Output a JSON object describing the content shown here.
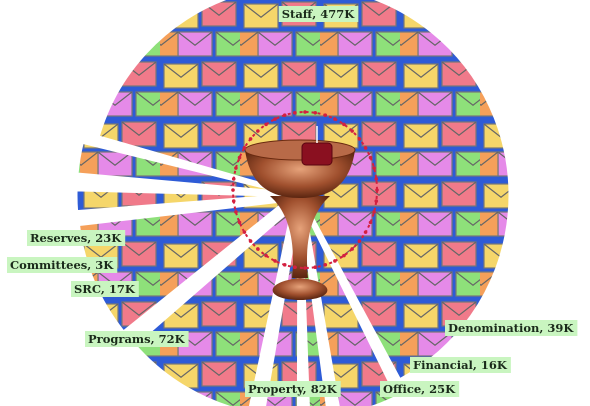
{
  "chart_data": {
    "type": "pie",
    "title": "",
    "slices": [
      {
        "category": "Staff",
        "value": 477,
        "label": "Staff, 477K"
      },
      {
        "category": "Denomination",
        "value": 39,
        "label": "Denomination, 39K"
      },
      {
        "category": "Financial",
        "value": 16,
        "label": "Financial, 16K"
      },
      {
        "category": "Office",
        "value": 25,
        "label": "Office, 25K"
      },
      {
        "category": "Property",
        "value": 82,
        "label": "Property, 82K"
      },
      {
        "category": "Programs",
        "value": 72,
        "label": "Programs, 72K"
      },
      {
        "category": "SRC",
        "value": 17,
        "label": "SRC, 17K"
      },
      {
        "category": "Committees",
        "value": 3,
        "label": "Committees, 3K"
      },
      {
        "category": "Reserves",
        "value": 23,
        "label": "Reserves, 23K"
      }
    ],
    "colors": {
      "slice_fill": "#2e5bd6",
      "label_background": "#c9f5c0",
      "ring": "#d42040",
      "envelope_colors": [
        "#f5d66a",
        "#f07a8a",
        "#e58ae8",
        "#8ee07a",
        "#f5a05a",
        "#c08af0",
        "#7ad0e8"
      ]
    },
    "exploded": true
  }
}
